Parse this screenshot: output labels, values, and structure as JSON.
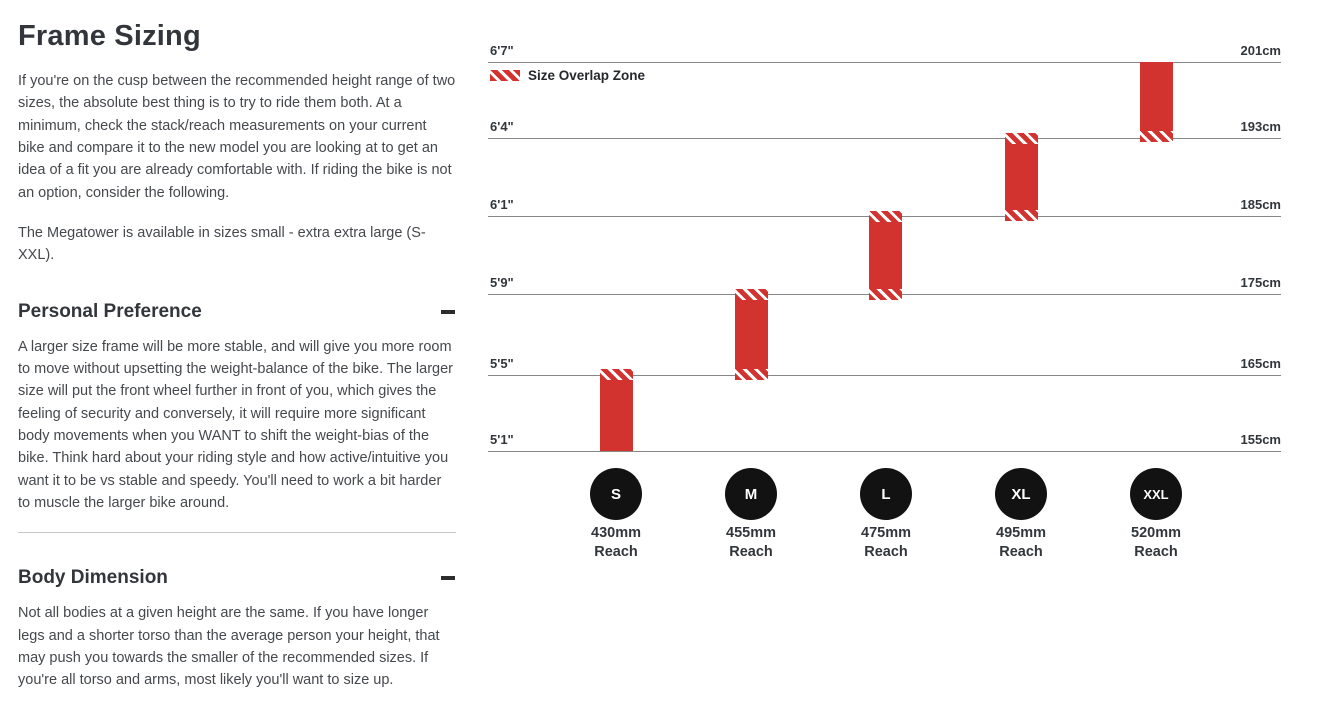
{
  "header": {
    "title": "Frame Sizing"
  },
  "intro": {
    "paragraph": "If you're on the cusp between the recommended height range of two sizes, the absolute best thing is to try to ride them both. At a minimum, check the stack/reach measurements on your current bike and compare it to the new model you are looking at to get an idea of a fit you are already comfortable with. If riding the bike is not an option, consider the following.",
    "availability": "The Megatower is available in sizes small - extra extra large (S-XXL)."
  },
  "sections": [
    {
      "heading": "Personal Preference",
      "toggle_state": "expanded",
      "body": "A larger size frame will be more stable, and will give you more room to move without upsetting the weight-balance of the bike. The larger size will put the front wheel further in front of you, which gives the feeling of security and conversely, it will require more significant body movements when you WANT to shift the weight-bias of the bike. Think hard about your riding style and how active/intuitive you want it to be vs stable and speedy. You'll need to work a bit harder to muscle the larger bike around."
    },
    {
      "heading": "Body Dimension",
      "toggle_state": "expanded",
      "body": "Not all bodies at a given height are the same. If you have longer legs and a shorter torso than the average person your height, that may push you towards the smaller of the recommended sizes. If you're all torso and arms, most likely you'll want to size up."
    }
  ],
  "chart_data": {
    "type": "bar",
    "title": "",
    "legend": {
      "swatch": "red-diagonal-hatch",
      "label": "Size Overlap Zone"
    },
    "reach_word": "Reach",
    "axis": {
      "left_unit": "feet-inches",
      "right_unit": "centimeters",
      "rows": [
        {
          "ft": "6'7\"",
          "cm": "201cm"
        },
        {
          "ft": "6'4\"",
          "cm": "193cm"
        },
        {
          "ft": "6'1\"",
          "cm": "185cm"
        },
        {
          "ft": "5'9\"",
          "cm": "175cm"
        },
        {
          "ft": "5'5\"",
          "cm": "165cm"
        },
        {
          "ft": "5'1\"",
          "cm": "155cm"
        }
      ]
    },
    "bars": [
      {
        "size": "S",
        "reach": "430mm",
        "rider_height_ft": "5'1\"-5'5\"",
        "rider_height_cm": "155-165cm",
        "overlap_top": true,
        "overlap_bottom": false
      },
      {
        "size": "M",
        "reach": "455mm",
        "rider_height_ft": "5'5\"-5'9\"",
        "rider_height_cm": "165-175cm",
        "overlap_top": true,
        "overlap_bottom": true
      },
      {
        "size": "L",
        "reach": "475mm",
        "rider_height_ft": "5'9\"-6'1\"",
        "rider_height_cm": "175-185cm",
        "overlap_top": true,
        "overlap_bottom": true
      },
      {
        "size": "XL",
        "reach": "495mm",
        "rider_height_ft": "6'1\"-6'4\"",
        "rider_height_cm": "185-193cm",
        "overlap_top": true,
        "overlap_bottom": true
      },
      {
        "size": "XXL",
        "reach": "520mm",
        "rider_height_ft": "6'4\"-6'7\"",
        "rider_height_cm": "193-201cm",
        "overlap_top": false,
        "overlap_bottom": true
      }
    ],
    "colors": {
      "bar": "#d2332f",
      "grid": "#878787",
      "circle": "#121212"
    }
  }
}
